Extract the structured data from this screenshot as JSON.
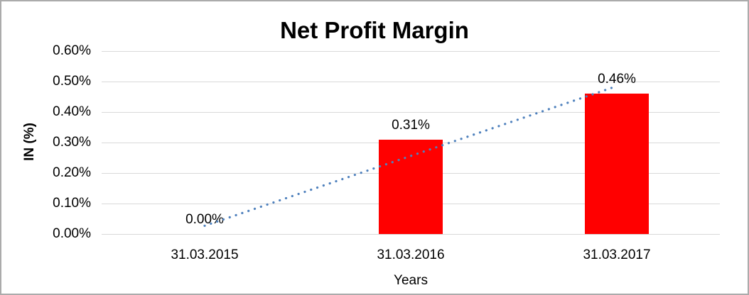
{
  "chart_data": {
    "type": "bar",
    "title": "Net Profit Margin",
    "xlabel": "Years",
    "ylabel": "IN (%)",
    "categories": [
      "31.03.2015",
      "31.03.2016",
      "31.03.2017"
    ],
    "values": [
      0.0,
      0.31,
      0.46
    ],
    "data_labels": [
      "0.00%",
      "0.31%",
      "0.46%"
    ],
    "y_ticks": [
      "0.60%",
      "0.50%",
      "0.40%",
      "0.30%",
      "0.20%",
      "0.10%",
      "0.00%"
    ],
    "ylim": [
      0,
      0.6
    ],
    "grid": true,
    "legend": "none",
    "colors": {
      "bar": "#FF0000",
      "trendline": "#4F81BD",
      "gridline": "#D9D9D9",
      "text": "#000000",
      "border": "#ABABAB"
    },
    "trendline": {
      "type": "linear",
      "style": "dotted",
      "start_value": 0.027,
      "end_value": 0.485
    }
  }
}
